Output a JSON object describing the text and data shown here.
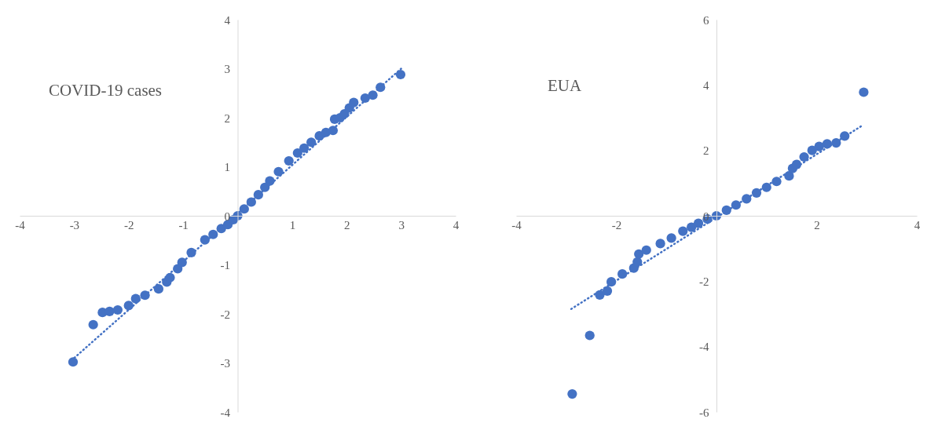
{
  "chart_data": [
    {
      "type": "scatter",
      "title": "COVID-19 cases",
      "marker": "circle",
      "grid": false,
      "xlim": [
        -4,
        4
      ],
      "ylim": [
        -4,
        4
      ],
      "xticks": [
        -4,
        -3,
        -2,
        -1,
        1,
        2,
        3,
        4
      ],
      "yticks": [
        -4,
        -3,
        -2,
        -1,
        0,
        1,
        2,
        3,
        4
      ],
      "series": [
        {
          "type": "scatter",
          "color": "#4472c4",
          "x": [
            -3.02,
            -2.65,
            -2.48,
            -2.35,
            -2.2,
            -2.0,
            -1.87,
            -1.7,
            -1.45,
            -1.3,
            -1.24,
            -1.1,
            -1.02,
            -0.85,
            -0.6,
            -0.45,
            -0.3,
            -0.18,
            -0.08,
            0,
            0.12,
            0.25,
            0.38,
            0.5,
            0.59,
            0.75,
            0.94,
            1.1,
            1.22,
            1.35,
            1.5,
            1.62,
            1.75,
            1.78,
            1.88,
            1.96,
            2.05,
            2.13,
            2.34,
            2.48,
            2.62,
            2.99
          ],
          "values": [
            -2.98,
            -2.22,
            -1.97,
            -1.95,
            -1.92,
            -1.83,
            -1.69,
            -1.62,
            -1.49,
            -1.35,
            -1.26,
            -1.08,
            -0.95,
            -0.75,
            -0.49,
            -0.38,
            -0.26,
            -0.18,
            -0.08,
            0,
            0.14,
            0.28,
            0.43,
            0.58,
            0.71,
            0.9,
            1.12,
            1.28,
            1.38,
            1.5,
            1.63,
            1.7,
            1.74,
            1.97,
            2.0,
            2.08,
            2.2,
            2.31,
            2.4,
            2.46,
            2.62,
            2.88
          ]
        },
        {
          "type": "line",
          "marker": "none",
          "line_style": "dotted",
          "color": "#4472c4",
          "x": [
            -3.05,
            3.0
          ],
          "values": [
            -2.95,
            3.0
          ]
        }
      ]
    },
    {
      "type": "scatter",
      "title": "EUA",
      "marker": "circle",
      "grid": false,
      "xlim": [
        -4,
        4
      ],
      "ylim": [
        -6,
        6
      ],
      "xticks": [
        -4,
        -2,
        2,
        4
      ],
      "yticks": [
        -6,
        -4,
        -2,
        0,
        2,
        4,
        6
      ],
      "series": [
        {
          "type": "scatter",
          "color": "#4472c4",
          "x": [
            -2.88,
            -2.53,
            -2.33,
            -2.18,
            -2.1,
            -1.88,
            -1.65,
            -1.58,
            -1.55,
            -1.4,
            -1.12,
            -0.9,
            -0.67,
            -0.5,
            -0.36,
            -0.18,
            0,
            0.2,
            0.39,
            0.6,
            0.8,
            1.0,
            1.2,
            1.45,
            1.52,
            1.6,
            1.75,
            1.91,
            2.05,
            2.21,
            2.39,
            2.56,
            2.94
          ],
          "values": [
            -5.45,
            -3.66,
            -2.42,
            -2.3,
            -2.02,
            -1.78,
            -1.6,
            -1.41,
            -1.17,
            -1.05,
            -0.85,
            -0.68,
            -0.47,
            -0.35,
            -0.23,
            -0.1,
            0,
            0.17,
            0.33,
            0.52,
            0.7,
            0.87,
            1.05,
            1.22,
            1.45,
            1.57,
            1.8,
            2.0,
            2.12,
            2.2,
            2.23,
            2.44,
            3.78
          ]
        },
        {
          "type": "line",
          "marker": "none",
          "line_style": "dotted",
          "color": "#4472c4",
          "x": [
            -2.9,
            2.9
          ],
          "values": [
            -2.85,
            2.75
          ]
        }
      ]
    }
  ]
}
